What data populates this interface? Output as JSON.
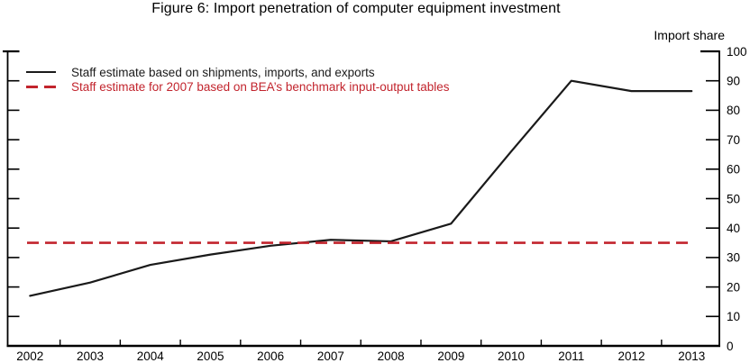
{
  "figure": {
    "title": "Figure 6: Import penetration of computer equipment investment",
    "unit_label": "Import share"
  },
  "legend": {
    "items": [
      {
        "label": "Staff estimate based on shipments, imports, and exports",
        "style": "solid",
        "color": "#1a1a1a"
      },
      {
        "label": "Staff estimate for 2007 based on BEA’s benchmark input-output tables",
        "style": "dashed",
        "color": "#c2242d"
      }
    ]
  },
  "colors": {
    "axis": "#000000",
    "series": "#1a1a1a",
    "benchmark": "#c2242d",
    "background": "#ffffff"
  },
  "chart_data": {
    "type": "line",
    "title": "Figure 6: Import penetration of computer equipment investment",
    "x": [
      2002,
      2003,
      2004,
      2005,
      2006,
      2007,
      2008,
      2009,
      2010,
      2011,
      2012,
      2013
    ],
    "series": [
      {
        "name": "Staff estimate based on shipments, imports, and exports",
        "type": "line",
        "style": "solid",
        "color": "#1a1a1a",
        "values": [
          17,
          21.5,
          27.5,
          31,
          34,
          36,
          35.5,
          41.5,
          66,
          90,
          86.5,
          86.5
        ]
      },
      {
        "name": "Staff estimate for 2007 based on BEA’s benchmark input-output tables",
        "type": "hline",
        "style": "dashed",
        "color": "#c2242d",
        "value": 35
      }
    ],
    "xlabel": "",
    "ylabel": "Import share",
    "ylim": [
      0,
      100
    ],
    "yticks": [
      0,
      10,
      20,
      30,
      40,
      50,
      60,
      70,
      80,
      90,
      100
    ],
    "y_axis_side": "right",
    "grid": false,
    "legend_position": "top-left"
  }
}
